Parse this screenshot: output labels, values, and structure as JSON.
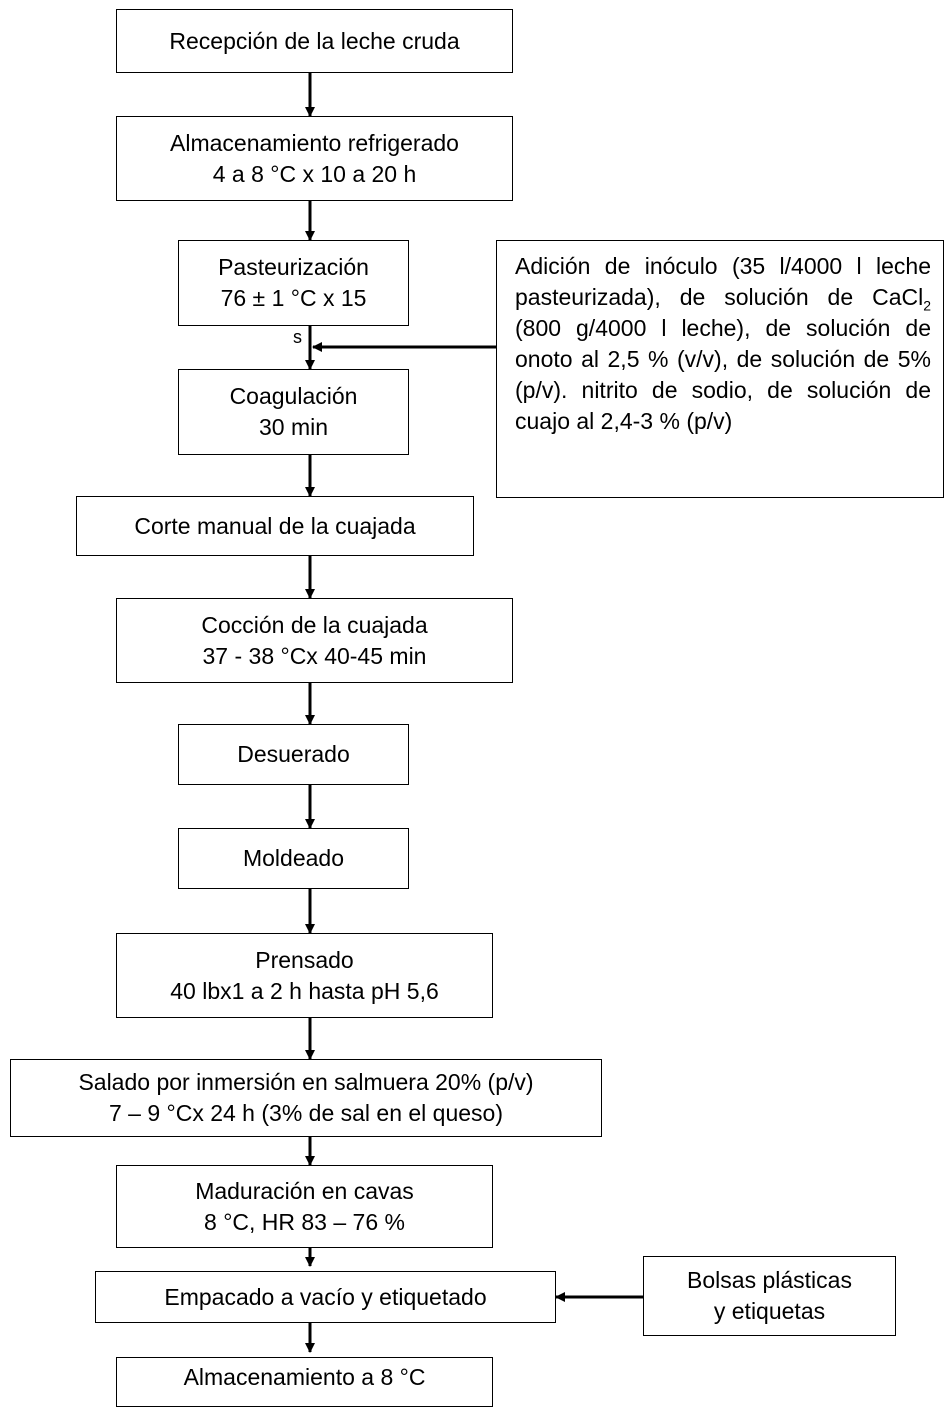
{
  "steps": {
    "recepcion": {
      "l1": "Recepción de la leche cruda"
    },
    "almacenamiento_refrigerado": {
      "l1": "Almacenamiento refrigerado",
      "l2": "4 a 8 °C x 10 a 20 h"
    },
    "pasteurizacion": {
      "l1": "Pasteurización",
      "l2": "76 ± 1 °C x 15",
      "l3": "s"
    },
    "coagulacion": {
      "l1": "Coagulación",
      "l2": "30 min"
    },
    "corte": {
      "l1": "Corte manual de la cuajada"
    },
    "coccion": {
      "l1": "Cocción de la cuajada",
      "l2": "37 - 38 °Cx 40-45 min"
    },
    "desuerado": {
      "l1": "Desuerado"
    },
    "moldeado": {
      "l1": "Moldeado"
    },
    "prensado": {
      "l1": "Prensado",
      "l2": "40 lbx1 a 2 h hasta pH 5,6"
    },
    "salado": {
      "l1": "Salado por inmersión en salmuera 20% (p/v)",
      "l2": "7 – 9 °Cx 24 h (3% de sal en el queso)"
    },
    "maduracion": {
      "l1": "Maduración en cavas",
      "l2": "8 °C, HR 83 – 76 %"
    },
    "empacado": {
      "l1": "Empacado a vacío y etiquetado"
    },
    "almacenamiento_final": {
      "l1": "Almacenamiento a 8 °C"
    }
  },
  "inputs": {
    "adicion": {
      "part1": "Adición de inóculo (35 l/4000 l leche pasteurizada), de solución de CaCl",
      "sub": "2",
      "part2": " (800 g/4000 l leche), de solución de onoto al 2,5 % (v/v), de solución de 5% (p/v). nitrito de sodio, de solución de cuajo al 2,4-3 % (p/v)"
    },
    "bolsas": {
      "l1": "Bolsas plásticas",
      "l2": "y etiquetas"
    }
  }
}
